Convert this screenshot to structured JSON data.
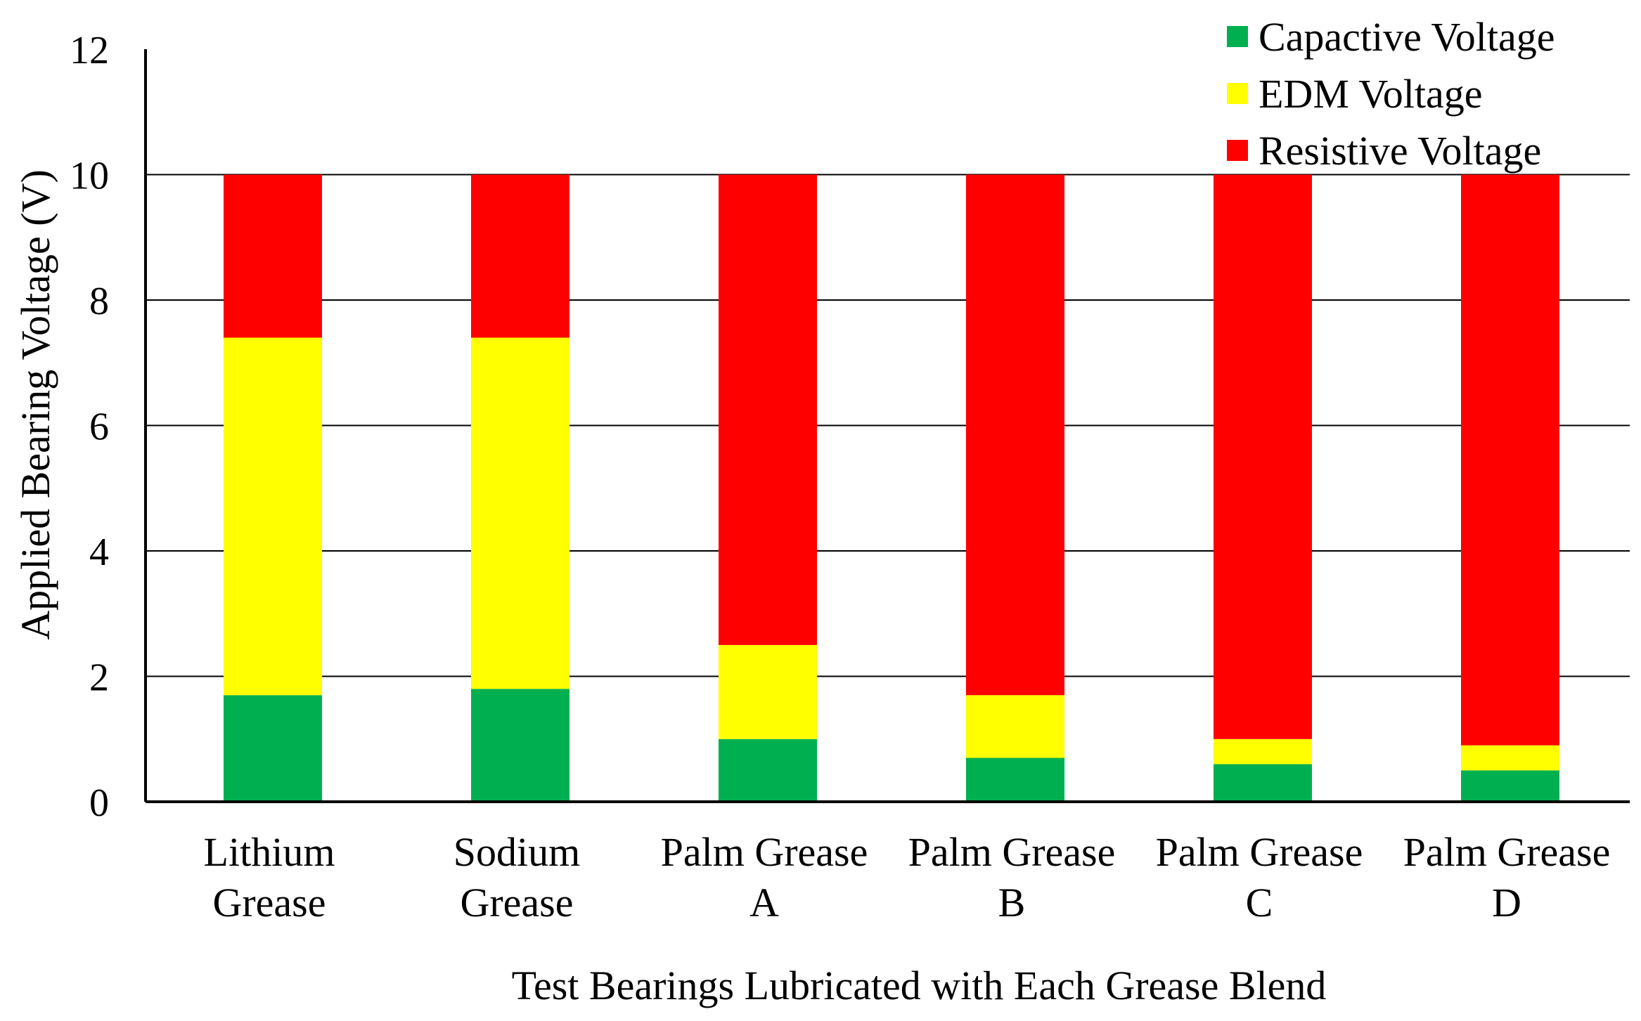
{
  "chart_data": {
    "type": "bar",
    "stacked": true,
    "title": "",
    "xlabel": "Test Bearings Lubricated with Each Grease Blend",
    "ylabel": "Applied Bearing Voltage (V)",
    "ylim": [
      0,
      12
    ],
    "yticks": [
      0,
      2,
      4,
      6,
      8,
      10,
      12
    ],
    "grid": true,
    "legend_position": "top-right",
    "categories": [
      [
        "Lithium",
        "Grease"
      ],
      [
        "Sodium",
        "Grease"
      ],
      [
        "Palm Grease",
        "A"
      ],
      [
        "Palm Grease",
        "B"
      ],
      [
        "Palm Grease",
        "C"
      ],
      [
        "Palm Grease",
        "D"
      ]
    ],
    "series": [
      {
        "name": "Capactive Voltage",
        "color": "#00b050",
        "values": [
          1.7,
          1.8,
          1.0,
          0.7,
          0.6,
          0.5
        ]
      },
      {
        "name": "EDM Voltage",
        "color": "#ffff00",
        "values": [
          5.7,
          5.6,
          1.5,
          1.0,
          0.4,
          0.4
        ]
      },
      {
        "name": "Resistive Voltage",
        "color": "#ff0000",
        "values": [
          2.6,
          2.6,
          7.5,
          8.3,
          9.0,
          9.1
        ]
      }
    ]
  }
}
